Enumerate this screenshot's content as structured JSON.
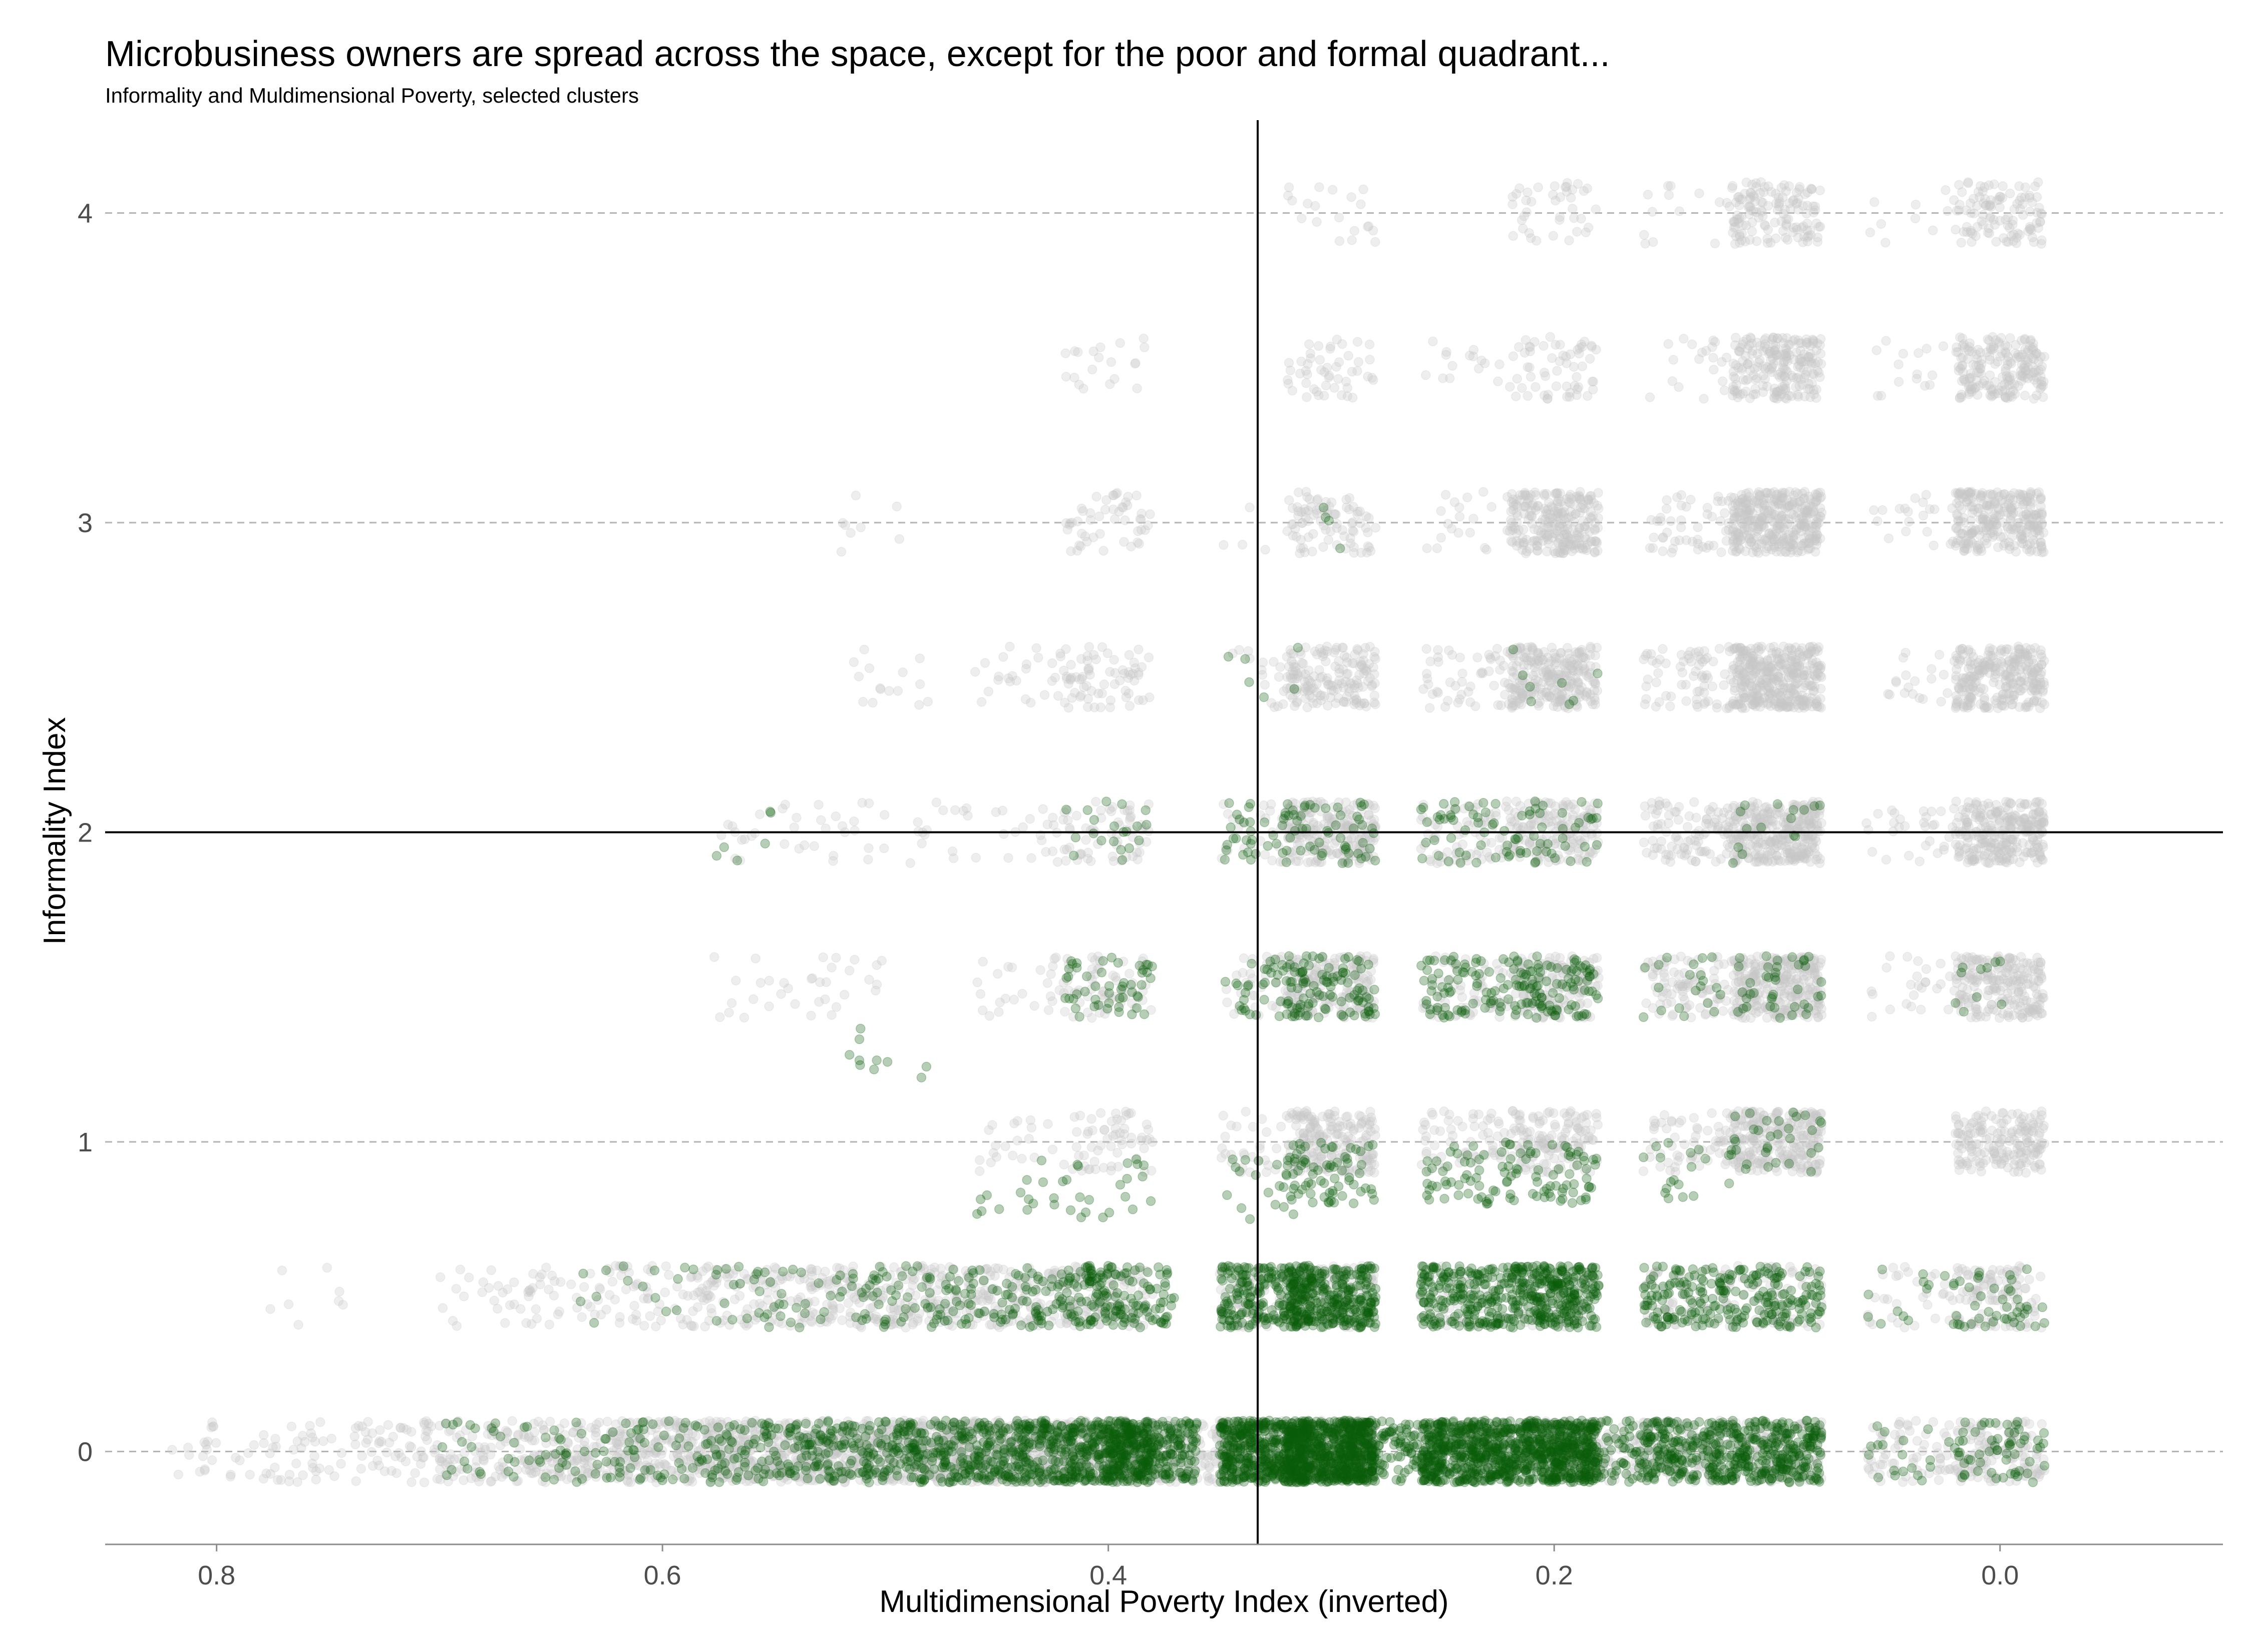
{
  "chart_data": {
    "type": "scatter",
    "title": "Microbusiness owners are spread across the space, except for the poor and formal quadrant...",
    "subtitle": "Informality and Muldimensional Poverty, selected clusters",
    "xlabel": "Multidimensional Poverty Index (inverted)",
    "ylabel": "Informality Index",
    "x_reversed": true,
    "xlim": [
      0.85,
      -0.1
    ],
    "ylim": [
      -0.3,
      4.3
    ],
    "x_ticks": [
      0.8,
      0.6,
      0.4,
      0.2,
      0.0
    ],
    "x_tick_labels": [
      "0.8",
      "0.6",
      "0.4",
      "0.2",
      "0.0"
    ],
    "y_ticks": [
      0,
      1,
      2,
      3,
      4
    ],
    "y_tick_labels": [
      "0",
      "1",
      "2",
      "3",
      "4"
    ],
    "grid": "horizontal dashed at y ticks",
    "reference_lines": {
      "x": 0.333,
      "y": 2
    },
    "jitter": {
      "x": 0.02,
      "y": 0.1
    },
    "colors": {
      "other_clusters": "#c8c8c8",
      "microbusiness_owners": "#0b5d0b"
    },
    "series": [
      {
        "color_key": "other_clusters",
        "point_opacity": 0.3,
        "groups": [
          {
            "x": 0.8,
            "y": 0,
            "n": 25
          },
          {
            "x": 0.76,
            "y": 0,
            "n": 40
          },
          {
            "x": 0.72,
            "y": 0,
            "n": 60
          },
          {
            "x": 0.68,
            "y": 0,
            "n": 90
          },
          {
            "x": 0.64,
            "y": 0,
            "n": 130
          },
          {
            "x": 0.6,
            "y": 0,
            "n": 180
          },
          {
            "x": 0.56,
            "y": 0,
            "n": 230
          },
          {
            "x": 0.52,
            "y": 0,
            "n": 260
          },
          {
            "x": 0.48,
            "y": 0,
            "n": 280
          },
          {
            "x": 0.44,
            "y": 0,
            "n": 280
          },
          {
            "x": 0.4,
            "y": 0,
            "n": 250
          },
          {
            "x": 0.36,
            "y": 0,
            "n": 140
          },
          {
            "x": 0.33,
            "y": 0,
            "n": 100
          },
          {
            "x": 0.3,
            "y": 0,
            "n": 150
          },
          {
            "x": 0.24,
            "y": 0,
            "n": 90
          },
          {
            "x": 0.2,
            "y": 0,
            "n": 110
          },
          {
            "x": 0.18,
            "y": 0,
            "n": 60
          },
          {
            "x": 0.14,
            "y": 0,
            "n": 120
          },
          {
            "x": 0.1,
            "y": 0,
            "n": 120
          },
          {
            "x": 0.04,
            "y": 0,
            "n": 70
          },
          {
            "x": 0.0,
            "y": 0,
            "n": 130
          },
          {
            "x": 0.76,
            "y": 0.5,
            "n": 8
          },
          {
            "x": 0.68,
            "y": 0.5,
            "n": 25
          },
          {
            "x": 0.64,
            "y": 0.5,
            "n": 40
          },
          {
            "x": 0.6,
            "y": 0.5,
            "n": 60
          },
          {
            "x": 0.56,
            "y": 0.5,
            "n": 80
          },
          {
            "x": 0.52,
            "y": 0.5,
            "n": 110
          },
          {
            "x": 0.48,
            "y": 0.5,
            "n": 120
          },
          {
            "x": 0.44,
            "y": 0.5,
            "n": 110
          },
          {
            "x": 0.4,
            "y": 0.5,
            "n": 110
          },
          {
            "x": 0.33,
            "y": 0.5,
            "n": 80
          },
          {
            "x": 0.3,
            "y": 0.5,
            "n": 100
          },
          {
            "x": 0.24,
            "y": 0.5,
            "n": 40
          },
          {
            "x": 0.2,
            "y": 0.5,
            "n": 60
          },
          {
            "x": 0.14,
            "y": 0.5,
            "n": 60
          },
          {
            "x": 0.1,
            "y": 0.5,
            "n": 60
          },
          {
            "x": 0.04,
            "y": 0.5,
            "n": 30
          },
          {
            "x": 0.0,
            "y": 0.5,
            "n": 110
          },
          {
            "x": 0.44,
            "y": 1,
            "n": 20
          },
          {
            "x": 0.4,
            "y": 1,
            "n": 60
          },
          {
            "x": 0.33,
            "y": 1,
            "n": 40
          },
          {
            "x": 0.3,
            "y": 1,
            "n": 180
          },
          {
            "x": 0.24,
            "y": 1,
            "n": 60
          },
          {
            "x": 0.2,
            "y": 1,
            "n": 130
          },
          {
            "x": 0.14,
            "y": 1,
            "n": 60
          },
          {
            "x": 0.1,
            "y": 1,
            "n": 260
          },
          {
            "x": 0.0,
            "y": 1,
            "n": 180
          },
          {
            "x": 0.56,
            "y": 1.5,
            "n": 15
          },
          {
            "x": 0.52,
            "y": 1.5,
            "n": 20
          },
          {
            "x": 0.44,
            "y": 1.5,
            "n": 25
          },
          {
            "x": 0.4,
            "y": 1.5,
            "n": 60
          },
          {
            "x": 0.33,
            "y": 1.5,
            "n": 40
          },
          {
            "x": 0.3,
            "y": 1.5,
            "n": 160
          },
          {
            "x": 0.24,
            "y": 1.5,
            "n": 60
          },
          {
            "x": 0.2,
            "y": 1.5,
            "n": 140
          },
          {
            "x": 0.14,
            "y": 1.5,
            "n": 90
          },
          {
            "x": 0.1,
            "y": 1.5,
            "n": 300
          },
          {
            "x": 0.04,
            "y": 1.5,
            "n": 25
          },
          {
            "x": 0.0,
            "y": 1.5,
            "n": 220
          },
          {
            "x": 0.56,
            "y": 2,
            "n": 15
          },
          {
            "x": 0.52,
            "y": 2,
            "n": 20
          },
          {
            "x": 0.48,
            "y": 2,
            "n": 15
          },
          {
            "x": 0.44,
            "y": 2,
            "n": 20
          },
          {
            "x": 0.4,
            "y": 2,
            "n": 60
          },
          {
            "x": 0.33,
            "y": 2,
            "n": 40
          },
          {
            "x": 0.3,
            "y": 2,
            "n": 200
          },
          {
            "x": 0.24,
            "y": 2,
            "n": 70
          },
          {
            "x": 0.2,
            "y": 2,
            "n": 160
          },
          {
            "x": 0.14,
            "y": 2,
            "n": 100
          },
          {
            "x": 0.1,
            "y": 2,
            "n": 320
          },
          {
            "x": 0.04,
            "y": 2,
            "n": 30
          },
          {
            "x": 0.0,
            "y": 2,
            "n": 280
          },
          {
            "x": 0.5,
            "y": 2.5,
            "n": 15
          },
          {
            "x": 0.44,
            "y": 2.5,
            "n": 25
          },
          {
            "x": 0.4,
            "y": 2.5,
            "n": 70
          },
          {
            "x": 0.33,
            "y": 2.5,
            "n": 25
          },
          {
            "x": 0.3,
            "y": 2.5,
            "n": 160
          },
          {
            "x": 0.24,
            "y": 2.5,
            "n": 50
          },
          {
            "x": 0.2,
            "y": 2.5,
            "n": 260
          },
          {
            "x": 0.14,
            "y": 2.5,
            "n": 70
          },
          {
            "x": 0.1,
            "y": 2.5,
            "n": 380
          },
          {
            "x": 0.04,
            "y": 2.5,
            "n": 20
          },
          {
            "x": 0.0,
            "y": 2.5,
            "n": 280
          },
          {
            "x": 0.5,
            "y": 3,
            "n": 8
          },
          {
            "x": 0.4,
            "y": 3,
            "n": 50
          },
          {
            "x": 0.33,
            "y": 3,
            "n": 10
          },
          {
            "x": 0.3,
            "y": 3,
            "n": 80
          },
          {
            "x": 0.24,
            "y": 3,
            "n": 20
          },
          {
            "x": 0.2,
            "y": 3,
            "n": 260
          },
          {
            "x": 0.14,
            "y": 3,
            "n": 50
          },
          {
            "x": 0.1,
            "y": 3,
            "n": 360
          },
          {
            "x": 0.04,
            "y": 3,
            "n": 20
          },
          {
            "x": 0.0,
            "y": 3,
            "n": 280
          },
          {
            "x": 0.4,
            "y": 3.5,
            "n": 20
          },
          {
            "x": 0.3,
            "y": 3.5,
            "n": 50
          },
          {
            "x": 0.24,
            "y": 3.5,
            "n": 15
          },
          {
            "x": 0.2,
            "y": 3.5,
            "n": 60
          },
          {
            "x": 0.14,
            "y": 3.5,
            "n": 20
          },
          {
            "x": 0.1,
            "y": 3.5,
            "n": 220
          },
          {
            "x": 0.04,
            "y": 3.5,
            "n": 15
          },
          {
            "x": 0.0,
            "y": 3.5,
            "n": 200
          },
          {
            "x": 0.3,
            "y": 4,
            "n": 20
          },
          {
            "x": 0.2,
            "y": 4,
            "n": 40
          },
          {
            "x": 0.14,
            "y": 4,
            "n": 15
          },
          {
            "x": 0.1,
            "y": 4,
            "n": 140
          },
          {
            "x": 0.04,
            "y": 4,
            "n": 10
          },
          {
            "x": 0.0,
            "y": 4,
            "n": 110
          }
        ]
      },
      {
        "color_key": "microbusiness_owners",
        "point_opacity": 0.3,
        "groups": [
          {
            "x": 0.68,
            "y": 0,
            "n": 25
          },
          {
            "x": 0.64,
            "y": 0,
            "n": 35
          },
          {
            "x": 0.6,
            "y": 0,
            "n": 50
          },
          {
            "x": 0.56,
            "y": 0,
            "n": 90
          },
          {
            "x": 0.52,
            "y": 0,
            "n": 130
          },
          {
            "x": 0.48,
            "y": 0,
            "n": 180
          },
          {
            "x": 0.44,
            "y": 0,
            "n": 240
          },
          {
            "x": 0.4,
            "y": 0,
            "n": 320
          },
          {
            "x": 0.38,
            "y": 0,
            "n": 240
          },
          {
            "x": 0.33,
            "y": 0,
            "n": 460
          },
          {
            "x": 0.3,
            "y": 0,
            "n": 620
          },
          {
            "x": 0.27,
            "y": 0,
            "n": 120
          },
          {
            "x": 0.24,
            "y": 0,
            "n": 440
          },
          {
            "x": 0.2,
            "y": 0,
            "n": 460
          },
          {
            "x": 0.18,
            "y": 0,
            "n": 90
          },
          {
            "x": 0.14,
            "y": 0,
            "n": 220
          },
          {
            "x": 0.1,
            "y": 0,
            "n": 260
          },
          {
            "x": 0.04,
            "y": 0,
            "n": 20
          },
          {
            "x": 0.0,
            "y": 0,
            "n": 60
          },
          {
            "x": 0.62,
            "y": 0.5,
            "n": 10
          },
          {
            "x": 0.58,
            "y": 0.5,
            "n": 15
          },
          {
            "x": 0.54,
            "y": 0.5,
            "n": 30
          },
          {
            "x": 0.5,
            "y": 0.5,
            "n": 45
          },
          {
            "x": 0.46,
            "y": 0.5,
            "n": 60
          },
          {
            "x": 0.42,
            "y": 0.5,
            "n": 90
          },
          {
            "x": 0.39,
            "y": 0.5,
            "n": 110
          },
          {
            "x": 0.33,
            "y": 0.5,
            "n": 200
          },
          {
            "x": 0.3,
            "y": 0.5,
            "n": 300
          },
          {
            "x": 0.24,
            "y": 0.5,
            "n": 200
          },
          {
            "x": 0.2,
            "y": 0.5,
            "n": 280
          },
          {
            "x": 0.14,
            "y": 0.5,
            "n": 120
          },
          {
            "x": 0.1,
            "y": 0.5,
            "n": 120
          },
          {
            "x": 0.04,
            "y": 0.5,
            "n": 15
          },
          {
            "x": 0.0,
            "y": 0.5,
            "n": 40
          },
          {
            "x": 0.5,
            "y": 1.3,
            "n": 10
          },
          {
            "x": 0.44,
            "y": 0.85,
            "n": 15
          },
          {
            "x": 0.4,
            "y": 0.85,
            "n": 20
          },
          {
            "x": 0.33,
            "y": 0.85,
            "n": 20
          },
          {
            "x": 0.3,
            "y": 0.9,
            "n": 70
          },
          {
            "x": 0.24,
            "y": 0.9,
            "n": 50
          },
          {
            "x": 0.2,
            "y": 0.9,
            "n": 60
          },
          {
            "x": 0.14,
            "y": 0.9,
            "n": 20
          },
          {
            "x": 0.1,
            "y": 1,
            "n": 30
          },
          {
            "x": 0.4,
            "y": 1.5,
            "n": 50
          },
          {
            "x": 0.33,
            "y": 1.5,
            "n": 40
          },
          {
            "x": 0.3,
            "y": 1.5,
            "n": 90
          },
          {
            "x": 0.24,
            "y": 1.5,
            "n": 70
          },
          {
            "x": 0.2,
            "y": 1.5,
            "n": 100
          },
          {
            "x": 0.14,
            "y": 1.5,
            "n": 20
          },
          {
            "x": 0.1,
            "y": 1.5,
            "n": 40
          },
          {
            "x": 0.0,
            "y": 1.5,
            "n": 10
          },
          {
            "x": 0.56,
            "y": 2,
            "n": 6
          },
          {
            "x": 0.4,
            "y": 2,
            "n": 20
          },
          {
            "x": 0.33,
            "y": 2,
            "n": 40
          },
          {
            "x": 0.3,
            "y": 2,
            "n": 40
          },
          {
            "x": 0.24,
            "y": 2,
            "n": 40
          },
          {
            "x": 0.2,
            "y": 2,
            "n": 40
          },
          {
            "x": 0.1,
            "y": 2,
            "n": 15
          },
          {
            "x": 0.33,
            "y": 2.5,
            "n": 6
          },
          {
            "x": 0.2,
            "y": 2.5,
            "n": 8
          },
          {
            "x": 0.3,
            "y": 3,
            "n": 4
          }
        ]
      }
    ]
  }
}
